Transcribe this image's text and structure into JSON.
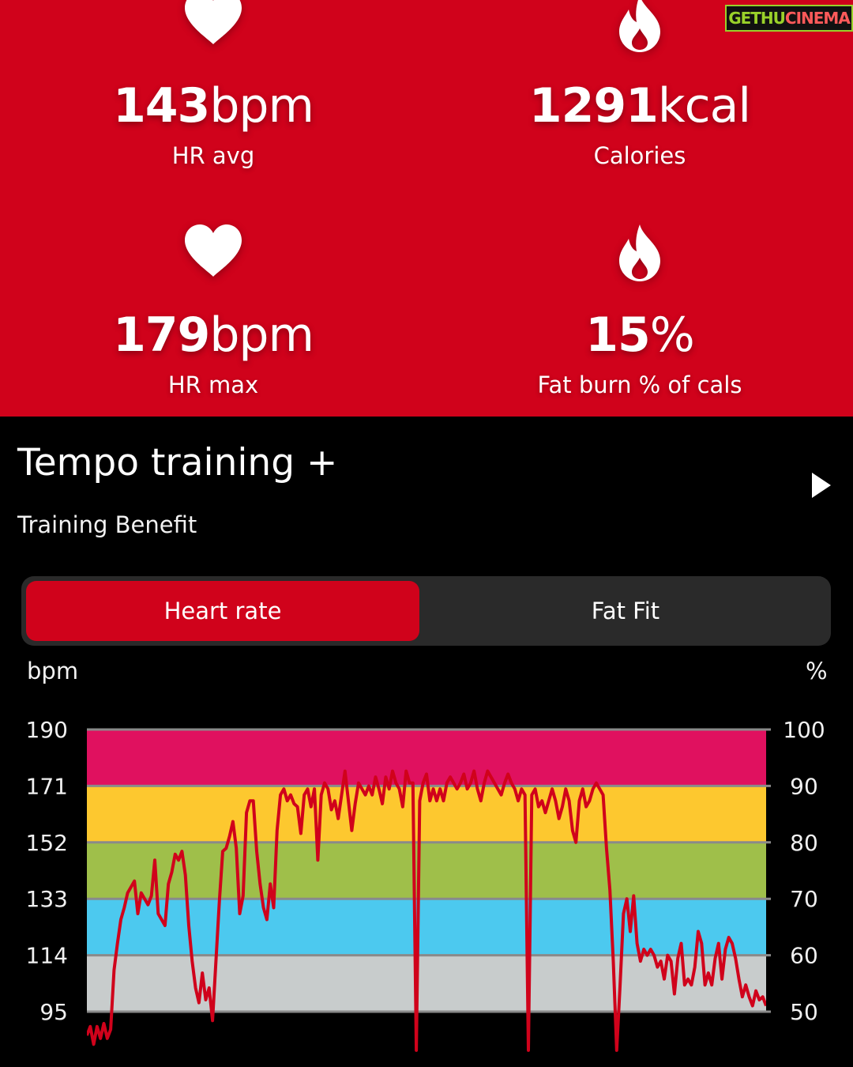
{
  "stats": {
    "hr_avg": {
      "number": "143",
      "unit": "bpm",
      "label": "HR avg",
      "icon": "heart-icon"
    },
    "calories": {
      "number": "1291",
      "unit": "kcal",
      "label": "Calories",
      "icon": "flame-icon"
    },
    "hr_max": {
      "number": "179",
      "unit": "bpm",
      "label": "HR max",
      "icon": "heart-icon"
    },
    "fat_burn": {
      "number": "15",
      "unit": "%",
      "label": "Fat burn % of cals",
      "icon": "flame-icon"
    }
  },
  "watermark": {
    "part1": "GETHU",
    "part2": "CINEMA"
  },
  "tempo": {
    "title": "Tempo training +",
    "subtitle": "Training Benefit",
    "icon": "play-triangle-icon"
  },
  "tabs": [
    {
      "label": "Heart rate",
      "active": true
    },
    {
      "label": "Fat Fit",
      "active": false
    }
  ],
  "colors": {
    "accent_red": "#d0021b",
    "zone_5": "#e0115f",
    "zone_4": "#fdc82f",
    "zone_3": "#9fbf4a",
    "zone_2": "#4cc9ef",
    "zone_1": "#c8cccc",
    "line": "#d0021b"
  },
  "chart_data": {
    "type": "line",
    "ylabel_left": "bpm",
    "ylabel_right": "%",
    "ylim": [
      95,
      190
    ],
    "yticks_left": [
      "190",
      "171",
      "152",
      "133",
      "114",
      "95"
    ],
    "yticks_right": [
      "100",
      "90",
      "80",
      "70",
      "60",
      "50"
    ],
    "zones": [
      {
        "from": 171,
        "to": 190,
        "color": "#e0115f"
      },
      {
        "from": 152,
        "to": 171,
        "color": "#fdc82f"
      },
      {
        "from": 133,
        "to": 152,
        "color": "#9fbf4a"
      },
      {
        "from": 114,
        "to": 133,
        "color": "#4cc9ef"
      },
      {
        "from": 95,
        "to": 114,
        "color": "#c8cccc"
      }
    ],
    "xlim": [
      0,
      100
    ],
    "series": [
      {
        "points": [
          [
            0,
            87
          ],
          [
            0.5,
            90
          ],
          [
            1,
            84
          ],
          [
            1.5,
            90
          ],
          [
            2,
            86
          ],
          [
            2.5,
            91
          ],
          [
            3,
            86
          ],
          [
            3.5,
            89
          ],
          [
            4,
            109
          ],
          [
            4.5,
            118
          ],
          [
            5,
            126
          ],
          [
            5.5,
            130
          ],
          [
            6,
            135
          ],
          [
            6.5,
            137
          ],
          [
            7,
            139
          ],
          [
            7.5,
            128
          ],
          [
            8,
            135
          ],
          [
            8.5,
            133
          ],
          [
            9,
            131
          ],
          [
            9.5,
            134
          ],
          [
            10,
            146
          ],
          [
            10.5,
            128
          ],
          [
            11,
            126
          ],
          [
            11.5,
            124
          ],
          [
            12,
            138
          ],
          [
            12.5,
            142
          ],
          [
            13,
            148
          ],
          [
            13.5,
            146
          ],
          [
            14,
            149
          ],
          [
            14.5,
            141
          ],
          [
            15,
            124
          ],
          [
            15.5,
            112
          ],
          [
            16,
            103
          ],
          [
            16.5,
            98
          ],
          [
            17,
            108
          ],
          [
            17.5,
            99
          ],
          [
            18,
            103
          ],
          [
            18.5,
            92
          ],
          [
            19,
            112
          ],
          [
            19.5,
            132
          ],
          [
            20,
            149
          ],
          [
            20.5,
            150
          ],
          [
            21,
            154
          ],
          [
            21.5,
            159
          ],
          [
            22,
            150
          ],
          [
            22.5,
            128
          ],
          [
            23,
            134
          ],
          [
            23.5,
            162
          ],
          [
            24,
            166
          ],
          [
            24.5,
            166
          ],
          [
            25,
            149
          ],
          [
            25.5,
            138
          ],
          [
            26,
            130
          ],
          [
            26.5,
            126
          ],
          [
            27,
            138
          ],
          [
            27.5,
            130
          ],
          [
            28,
            156
          ],
          [
            28.5,
            168
          ],
          [
            29,
            170
          ],
          [
            29.5,
            166
          ],
          [
            30,
            168
          ],
          [
            30.5,
            165
          ],
          [
            31,
            164
          ],
          [
            31.5,
            155
          ],
          [
            32,
            168
          ],
          [
            32.5,
            170
          ],
          [
            33,
            164
          ],
          [
            33.5,
            170
          ],
          [
            34,
            146
          ],
          [
            34.5,
            168
          ],
          [
            35,
            172
          ],
          [
            35.5,
            170
          ],
          [
            36,
            163
          ],
          [
            36.5,
            166
          ],
          [
            37,
            160
          ],
          [
            37.5,
            168
          ],
          [
            38,
            176
          ],
          [
            38.5,
            166
          ],
          [
            39,
            156
          ],
          [
            39.5,
            165
          ],
          [
            40,
            172
          ],
          [
            40.5,
            170
          ],
          [
            41,
            168
          ],
          [
            41.5,
            171
          ],
          [
            42,
            168
          ],
          [
            42.5,
            174
          ],
          [
            43,
            170
          ],
          [
            43.5,
            165
          ],
          [
            44,
            174
          ],
          [
            44.5,
            170
          ],
          [
            45,
            176
          ],
          [
            45.5,
            172
          ],
          [
            46,
            170
          ],
          [
            46.5,
            164
          ],
          [
            47,
            176
          ],
          [
            47.5,
            172
          ],
          [
            48,
            172
          ],
          [
            48.5,
            82
          ],
          [
            49,
            166
          ],
          [
            49.5,
            172
          ],
          [
            50,
            175
          ],
          [
            50.5,
            166
          ],
          [
            51,
            170
          ],
          [
            51.5,
            166
          ],
          [
            52,
            170
          ],
          [
            52.5,
            166
          ],
          [
            53,
            172
          ],
          [
            53.5,
            174
          ],
          [
            54,
            172
          ],
          [
            54.5,
            170
          ],
          [
            55,
            172
          ],
          [
            55.5,
            175
          ],
          [
            56,
            170
          ],
          [
            56.5,
            172
          ],
          [
            57,
            176
          ],
          [
            57.5,
            170
          ],
          [
            58,
            166
          ],
          [
            58.5,
            172
          ],
          [
            59,
            176
          ],
          [
            59.5,
            174
          ],
          [
            60,
            172
          ],
          [
            60.5,
            170
          ],
          [
            61,
            168
          ],
          [
            61.5,
            172
          ],
          [
            62,
            175
          ],
          [
            62.5,
            172
          ],
          [
            63,
            170
          ],
          [
            63.5,
            166
          ],
          [
            64,
            170
          ],
          [
            64.5,
            168
          ],
          [
            65,
            82
          ],
          [
            65.5,
            168
          ],
          [
            66,
            170
          ],
          [
            66.5,
            164
          ],
          [
            67,
            166
          ],
          [
            67.5,
            162
          ],
          [
            68,
            166
          ],
          [
            68.5,
            170
          ],
          [
            69,
            166
          ],
          [
            69.5,
            160
          ],
          [
            70,
            164
          ],
          [
            70.5,
            170
          ],
          [
            71,
            166
          ],
          [
            71.5,
            156
          ],
          [
            72,
            152
          ],
          [
            72.5,
            166
          ],
          [
            73,
            170
          ],
          [
            73.5,
            164
          ],
          [
            74,
            166
          ],
          [
            74.5,
            170
          ],
          [
            75,
            172
          ],
          [
            75.5,
            170
          ],
          [
            76,
            168
          ],
          [
            76.5,
            150
          ],
          [
            77,
            136
          ],
          [
            77.5,
            112
          ],
          [
            78,
            82
          ],
          [
            78.5,
            104
          ],
          [
            79,
            128
          ],
          [
            79.5,
            133
          ],
          [
            80,
            122
          ],
          [
            80.5,
            134
          ],
          [
            81,
            118
          ],
          [
            81.5,
            112
          ],
          [
            82,
            116
          ],
          [
            82.5,
            114
          ],
          [
            83,
            116
          ],
          [
            83.5,
            114
          ],
          [
            84,
            110
          ],
          [
            84.5,
            112
          ],
          [
            85,
            106
          ],
          [
            85.5,
            114
          ],
          [
            86,
            112
          ],
          [
            86.5,
            101
          ],
          [
            87,
            113
          ],
          [
            87.5,
            118
          ],
          [
            88,
            104
          ],
          [
            88.5,
            106
          ],
          [
            89,
            104
          ],
          [
            89.5,
            110
          ],
          [
            90,
            122
          ],
          [
            90.5,
            118
          ],
          [
            91,
            104
          ],
          [
            91.5,
            108
          ],
          [
            92,
            104
          ],
          [
            92.5,
            113
          ],
          [
            93,
            118
          ],
          [
            93.5,
            106
          ],
          [
            94,
            116
          ],
          [
            94.5,
            120
          ],
          [
            95,
            118
          ],
          [
            95.5,
            113
          ],
          [
            96,
            106
          ],
          [
            96.5,
            100
          ],
          [
            97,
            104
          ],
          [
            97.5,
            100
          ],
          [
            98,
            97
          ],
          [
            98.5,
            102
          ],
          [
            99,
            99
          ],
          [
            99.5,
            100
          ],
          [
            100,
            97
          ]
        ]
      }
    ]
  }
}
